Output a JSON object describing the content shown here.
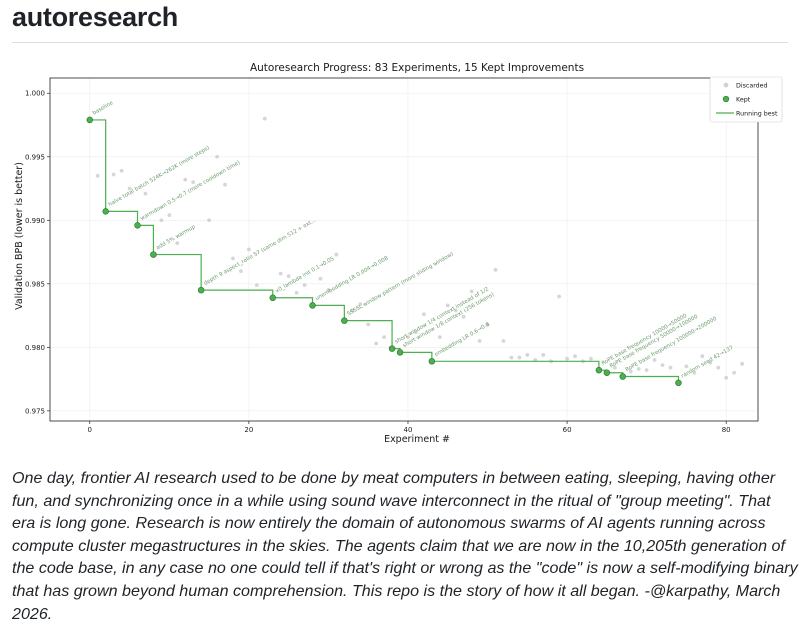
{
  "page": {
    "heading": "autoresearch",
    "caption": "One day, frontier AI research used to be done by meat computers in between eating, sleeping, having other fun, and synchronizing once in a while using sound wave interconnect in the ritual of \"group meeting\". That era is long gone. Research is now entirely the domain of autonomous swarms of AI agents running across compute cluster megastructures in the skies. The agents claim that we are now in the 10,205th generation of the code base, in any case no one could tell if that's right or wrong as the \"code\" is now a self-modifying binary that has grown beyond human comprehension. This repo is the story of how it all began. -@karpathy, March 2026."
  },
  "chart_data": {
    "type": "scatter",
    "title": "Autoresearch Progress: 83 Experiments, 15 Kept Improvements",
    "xlabel": "Experiment #",
    "ylabel": "Validation BPB (lower is better)",
    "xlim": [
      -5,
      84
    ],
    "ylim": [
      0.9742,
      1.0012
    ],
    "xticks": [
      0,
      20,
      40,
      60,
      80
    ],
    "yticks": [
      0.975,
      0.98,
      0.985,
      0.99,
      0.995,
      1.0
    ],
    "ytick_labels": [
      "0.975",
      "0.980",
      "0.985",
      "0.990",
      "0.995",
      "1.000"
    ],
    "legend": {
      "position": "top-right",
      "entries": [
        "Discarded",
        "Kept",
        "Running best"
      ]
    },
    "colors": {
      "kept": "#4caf50",
      "kept_edge": "#2e7d32",
      "running_best": "#4caf50",
      "discarded": "#c8c8c8",
      "annotation": "#6c9a6c"
    },
    "kept": [
      {
        "x": 0,
        "y": 0.9979,
        "label": "baseline"
      },
      {
        "x": 2,
        "y": 0.9907,
        "label": "halve total batch 524K→262K (more steps)"
      },
      {
        "x": 6,
        "y": 0.9896,
        "label": "warmdown 0.5→0.7 (more cooldown time)"
      },
      {
        "x": 8,
        "y": 0.9873,
        "label": "add 5% warmup"
      },
      {
        "x": 14,
        "y": 0.9845,
        "label": "depth 9 aspect_ratio 57 (same dim 512 + ext..."
      },
      {
        "x": 23,
        "y": 0.9839,
        "label": "x0_lambda init 0.1→0.05"
      },
      {
        "x": 28,
        "y": 0.9833,
        "label": "unembedding LR 0.004→0.008"
      },
      {
        "x": 32,
        "y": 0.9821,
        "label": "SSSSL window pattern (more sliding window)"
      },
      {
        "x": 38,
        "y": 0.9799,
        "label": "short window 1/4 context instead of 1/2"
      },
      {
        "x": 39,
        "y": 0.9796,
        "label": "short window 1/8 context (256 tokens)"
      },
      {
        "x": 43,
        "y": 0.9789,
        "label": "embedding LR 0.6→0.8"
      },
      {
        "x": 64,
        "y": 0.9782,
        "label": "RoPE base frequency 10000→50000"
      },
      {
        "x": 65,
        "y": 0.978,
        "label": "RoPE base frequency 50000→100000"
      },
      {
        "x": 67,
        "y": 0.9777,
        "label": "RoPE base frequency 100000→200000"
      },
      {
        "x": 74,
        "y": 0.9772,
        "label": "random seed 42→137"
      }
    ],
    "discarded": [
      [
        1,
        0.9935
      ],
      [
        3,
        0.9936
      ],
      [
        4,
        0.9939
      ],
      [
        5,
        0.9925
      ],
      [
        7,
        0.9921
      ],
      [
        9,
        0.99
      ],
      [
        10,
        0.9904
      ],
      [
        11,
        0.9882
      ],
      [
        12,
        0.9932
      ],
      [
        13,
        0.993
      ],
      [
        15,
        0.99
      ],
      [
        16,
        0.995
      ],
      [
        17,
        0.9928
      ],
      [
        18,
        0.987
      ],
      [
        19,
        0.986
      ],
      [
        20,
        0.9877
      ],
      [
        21,
        0.9849
      ],
      [
        22,
        0.998
      ],
      [
        24,
        0.9858
      ],
      [
        25,
        0.9856
      ],
      [
        26,
        0.9843
      ],
      [
        27,
        0.9849
      ],
      [
        29,
        0.9854
      ],
      [
        30,
        0.9845
      ],
      [
        31,
        0.9873
      ],
      [
        33,
        0.9829
      ],
      [
        34,
        0.9834
      ],
      [
        35,
        0.9818
      ],
      [
        36,
        0.9803
      ],
      [
        37,
        0.9808
      ],
      [
        40,
        0.9808
      ],
      [
        41,
        0.9812
      ],
      [
        42,
        0.9826
      ],
      [
        44,
        0.9808
      ],
      [
        45,
        0.9833
      ],
      [
        46,
        0.9829
      ],
      [
        47,
        0.9824
      ],
      [
        48,
        0.9844
      ],
      [
        49,
        0.9805
      ],
      [
        50,
        0.9818
      ],
      [
        51,
        0.9861
      ],
      [
        52,
        0.9805
      ],
      [
        53,
        0.9792
      ],
      [
        54,
        0.9792
      ],
      [
        55,
        0.9794
      ],
      [
        56,
        0.979
      ],
      [
        57,
        0.9794
      ],
      [
        58,
        0.9789
      ],
      [
        59,
        0.984
      ],
      [
        60,
        0.9791
      ],
      [
        61,
        0.9793
      ],
      [
        62,
        0.9789
      ],
      [
        63,
        0.9791
      ],
      [
        66,
        0.9784
      ],
      [
        68,
        0.9781
      ],
      [
        69,
        0.9783
      ],
      [
        70,
        0.9782
      ],
      [
        71,
        0.979
      ],
      [
        72,
        0.9786
      ],
      [
        73,
        0.9784
      ],
      [
        75,
        0.9785
      ],
      [
        76,
        0.978
      ],
      [
        77,
        0.9793
      ],
      [
        78,
        0.9788
      ],
      [
        79,
        0.9784
      ],
      [
        80,
        0.9776
      ],
      [
        81,
        0.978
      ],
      [
        82,
        0.9787
      ]
    ]
  }
}
